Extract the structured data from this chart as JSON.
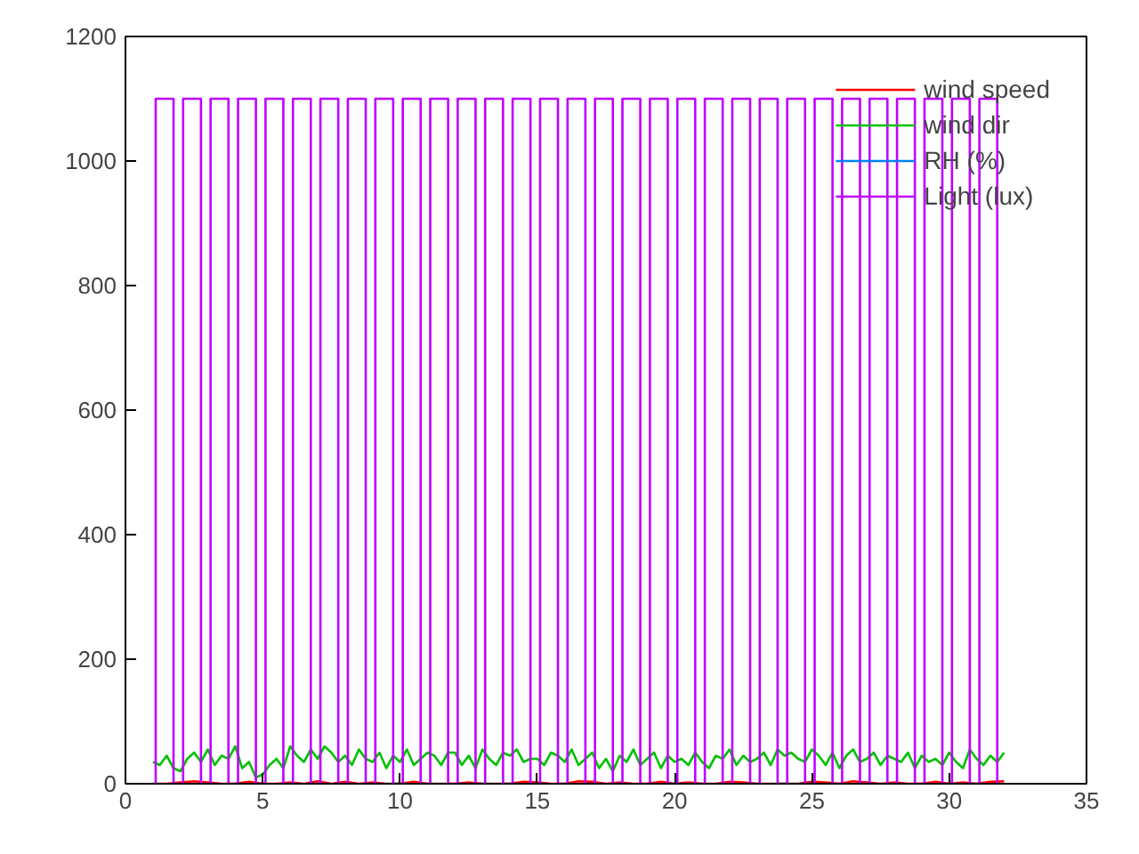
{
  "chart_data": {
    "type": "line",
    "xlim": [
      0,
      35
    ],
    "ylim": [
      0,
      1200
    ],
    "xticks": [
      0,
      5,
      10,
      15,
      20,
      25,
      30,
      35
    ],
    "yticks": [
      0,
      200,
      400,
      600,
      800,
      1000,
      1200
    ],
    "grid": false,
    "legend": "top right",
    "series": [
      {
        "name": "wind speed",
        "color": "#ff0000",
        "x": [
          1,
          1.5,
          2,
          2.5,
          3,
          3.5,
          4,
          4.5,
          5,
          5.5,
          6,
          6.5,
          7,
          7.5,
          8,
          8.5,
          9,
          9.5,
          10,
          10.5,
          11,
          11.5,
          12,
          12.5,
          13,
          13.5,
          14,
          14.5,
          15,
          15.5,
          16,
          16.5,
          17,
          17.5,
          18,
          18.5,
          19,
          19.5,
          20,
          20.5,
          21,
          21.5,
          22,
          22.5,
          23,
          23.5,
          24,
          24.5,
          25,
          25.5,
          26,
          26.5,
          27,
          27.5,
          28,
          28.5,
          29,
          29.5,
          30,
          30.5,
          31,
          31.5,
          32
        ],
        "values": [
          0,
          0,
          2,
          4,
          2,
          0,
          0,
          3,
          0,
          0,
          2,
          0,
          4,
          0,
          3,
          0,
          2,
          0,
          0,
          3,
          0,
          0,
          0,
          2,
          0,
          0,
          0,
          3,
          2,
          0,
          0,
          4,
          3,
          0,
          2,
          0,
          0,
          3,
          0,
          2,
          0,
          0,
          3,
          2,
          0,
          0,
          0,
          0,
          3,
          2,
          0,
          4,
          2,
          0,
          2,
          0,
          0,
          3,
          0,
          2,
          0,
          3,
          4
        ]
      },
      {
        "name": "wind dir",
        "color": "#00c000",
        "x": [
          1,
          1.25,
          1.5,
          1.75,
          2,
          2.25,
          2.5,
          2.75,
          3,
          3.25,
          3.5,
          3.75,
          4,
          4.25,
          4.5,
          4.75,
          5,
          5.25,
          5.5,
          5.75,
          6,
          6.25,
          6.5,
          6.75,
          7,
          7.25,
          7.5,
          7.75,
          8,
          8.25,
          8.5,
          8.75,
          9,
          9.25,
          9.5,
          9.75,
          10,
          10.25,
          10.5,
          10.75,
          11,
          11.25,
          11.5,
          11.75,
          12,
          12.25,
          12.5,
          12.75,
          13,
          13.25,
          13.5,
          13.75,
          14,
          14.25,
          14.5,
          14.75,
          15,
          15.25,
          15.5,
          15.75,
          16,
          16.25,
          16.5,
          16.75,
          17,
          17.25,
          17.5,
          17.75,
          18,
          18.25,
          18.5,
          18.75,
          19,
          19.25,
          19.5,
          19.75,
          20,
          20.25,
          20.5,
          20.75,
          21,
          21.25,
          21.5,
          21.75,
          22,
          22.25,
          22.5,
          22.75,
          23,
          23.25,
          23.5,
          23.75,
          24,
          24.25,
          24.5,
          24.75,
          25,
          25.25,
          25.5,
          25.75,
          26,
          26.25,
          26.5,
          26.75,
          27,
          27.25,
          27.5,
          27.75,
          28,
          28.25,
          28.5,
          28.75,
          29,
          29.25,
          29.5,
          29.75,
          30,
          30.25,
          30.5,
          30.75,
          31,
          31.25,
          31.5,
          31.75,
          32
        ],
        "values": [
          35,
          30,
          45,
          25,
          20,
          40,
          50,
          35,
          55,
          30,
          45,
          40,
          60,
          25,
          35,
          10,
          15,
          30,
          40,
          25,
          60,
          45,
          35,
          55,
          40,
          60,
          50,
          35,
          45,
          30,
          55,
          40,
          35,
          50,
          25,
          45,
          35,
          55,
          30,
          40,
          50,
          45,
          30,
          50,
          50,
          30,
          45,
          25,
          55,
          40,
          30,
          50,
          45,
          55,
          35,
          40,
          40,
          30,
          50,
          45,
          35,
          55,
          30,
          40,
          50,
          25,
          40,
          20,
          45,
          35,
          55,
          30,
          40,
          50,
          25,
          45,
          35,
          40,
          30,
          50,
          35,
          25,
          45,
          40,
          55,
          30,
          45,
          35,
          40,
          50,
          30,
          55,
          45,
          50,
          40,
          35,
          55,
          45,
          30,
          50,
          25,
          45,
          55,
          35,
          40,
          50,
          30,
          45,
          40,
          35,
          50,
          25,
          45,
          35,
          40,
          30,
          50,
          35,
          25,
          55,
          40,
          30,
          45,
          35,
          50
        ]
      },
      {
        "name": "RH (%)",
        "color": "#0080ff"
      },
      {
        "name": "Light (lux)",
        "color": "#c000ff",
        "x": [
          1.1,
          1.1,
          1.75,
          1.75,
          2.1,
          2.1,
          2.75,
          2.75,
          3.1,
          3.1,
          3.75,
          3.75,
          4.1,
          4.1,
          4.75,
          4.75,
          5.1,
          5.1,
          5.75,
          5.75,
          6.1,
          6.1,
          6.75,
          6.75,
          7.1,
          7.1,
          7.75,
          7.75,
          8.1,
          8.1,
          8.75,
          8.75,
          9.1,
          9.1,
          9.75,
          9.75,
          10.1,
          10.1,
          10.75,
          10.75,
          11.1,
          11.1,
          11.75,
          11.75,
          12.1,
          12.1,
          12.75,
          12.75,
          13.1,
          13.1,
          13.75,
          13.75,
          14.1,
          14.1,
          14.75,
          14.75,
          15.1,
          15.1,
          15.75,
          15.75,
          16.1,
          16.1,
          16.75,
          16.75,
          17.1,
          17.1,
          17.75,
          17.75,
          18.1,
          18.1,
          18.75,
          18.75,
          19.1,
          19.1,
          19.75,
          19.75,
          20.1,
          20.1,
          20.75,
          20.75,
          21.1,
          21.1,
          21.75,
          21.75,
          22.1,
          22.1,
          22.75,
          22.75,
          23.1,
          23.1,
          23.75,
          23.75,
          24.1,
          24.1,
          24.75,
          24.75,
          25.1,
          25.1,
          25.75,
          25.75,
          26.1,
          26.1,
          26.75,
          26.75,
          27.1,
          27.1,
          27.75,
          27.75,
          28.1,
          28.1,
          28.75,
          28.75,
          29.1,
          29.1,
          29.75,
          29.75,
          30.1,
          30.1,
          30.75,
          30.75,
          31.1,
          31.1,
          31.75,
          31.75
        ],
        "values": [
          0,
          1100,
          1100,
          0,
          0,
          1100,
          1100,
          0,
          0,
          1100,
          1100,
          0,
          0,
          1100,
          1100,
          0,
          0,
          1100,
          1100,
          0,
          0,
          1100,
          1100,
          0,
          0,
          1100,
          1100,
          0,
          0,
          1100,
          1100,
          0,
          0,
          1100,
          1100,
          0,
          0,
          1100,
          1100,
          0,
          0,
          1100,
          1100,
          0,
          0,
          1100,
          1100,
          0,
          0,
          1100,
          1100,
          0,
          0,
          1100,
          1100,
          0,
          0,
          1100,
          1100,
          0,
          0,
          1100,
          1100,
          0,
          0,
          1100,
          1100,
          0,
          0,
          1100,
          1100,
          0,
          0,
          1100,
          1100,
          0,
          0,
          1100,
          1100,
          0,
          0,
          1100,
          1100,
          0,
          0,
          1100,
          1100,
          0,
          0,
          1100,
          1100,
          0,
          0,
          1100,
          1100,
          0,
          0,
          1100,
          1100,
          0,
          0,
          1100,
          1100,
          0,
          0,
          1100,
          1100,
          0,
          0,
          1100,
          1100,
          0,
          0,
          1100,
          1100,
          0,
          0,
          1100,
          1100,
          0,
          0,
          1100,
          1100,
          0
        ]
      }
    ]
  }
}
